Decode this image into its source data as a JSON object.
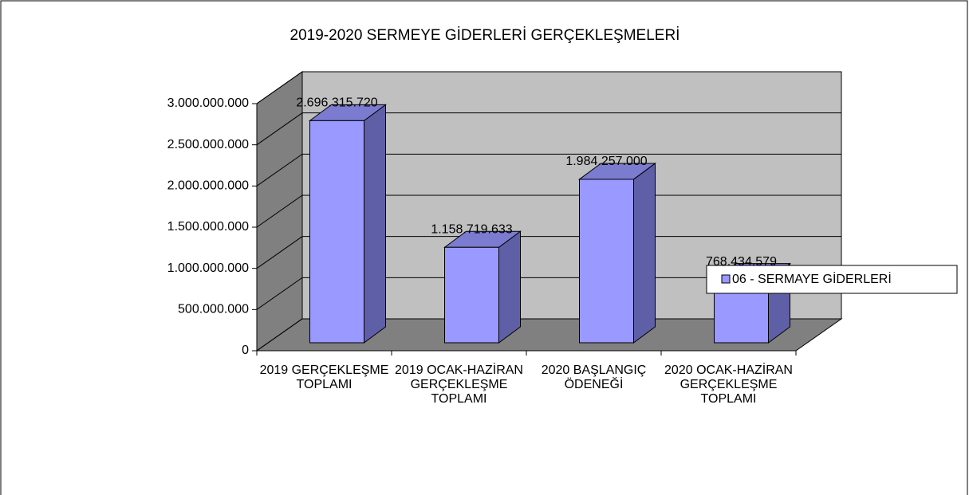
{
  "chart_data": {
    "type": "bar3d",
    "title": "2019-2020 SERMEYE GİDERLERİ GERÇEKLEŞMELERİ",
    "categories": [
      "2019 GERÇEKLEŞME TOPLAMI",
      "2019 OCAK-HAZİRAN GERÇEKLEŞME TOPLAMI",
      "2020 BAŞLANGIÇ ÖDENEĞİ",
      "2020 OCAK-HAZİRAN GERÇEKLEŞME TOPLAMI"
    ],
    "series": [
      {
        "name": "06 - SERMAYE GİDERLERİ",
        "color": "#9999ff",
        "values": [
          2696315720,
          1158719633,
          1984257000,
          768434579
        ],
        "value_labels": [
          "2.696.315.720",
          "1.158.719.633",
          "1.984.257.000",
          "768.434.579"
        ]
      }
    ],
    "ylim": [
      0,
      3000000000
    ],
    "yticks": [
      0,
      {
        "value": 500000000,
        "label": "500.000.000"
      },
      {
        "value": 1000000000,
        "label": "1.000.000.000"
      },
      {
        "value": 1500000000,
        "label": "1.500.000.000"
      },
      {
        "value": 2000000000,
        "label": "2.000.000.000"
      },
      {
        "value": 2500000000,
        "label": "2.500.000.000"
      },
      {
        "value": 3000000000,
        "label": "3.000.000.000"
      }
    ],
    "grid": true,
    "legend": "right"
  }
}
